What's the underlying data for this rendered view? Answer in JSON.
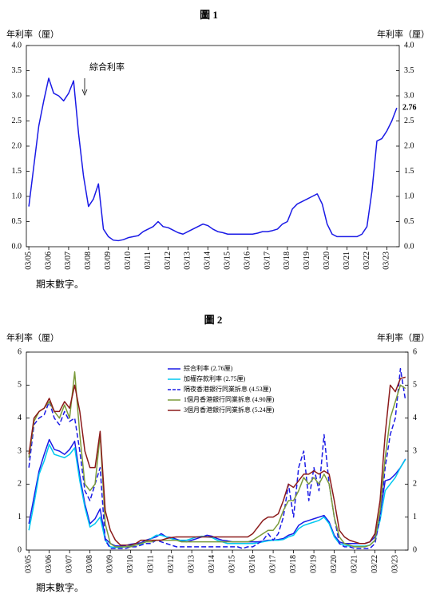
{
  "chart_data": [
    {
      "type": "line",
      "title": "圖 1",
      "y_label": "年利率（厘）",
      "y2_label": "年利率（厘）",
      "annotation": "綜合利率",
      "footnote": "期末數字。",
      "categories": [
        "03/05",
        null,
        null,
        null,
        "03/06",
        null,
        null,
        null,
        "03/07",
        null,
        null,
        null,
        "03/08",
        null,
        null,
        null,
        "03/09",
        null,
        null,
        null,
        "03/10",
        null,
        null,
        null,
        "03/11",
        null,
        null,
        null,
        "03/12",
        null,
        null,
        null,
        "03/13",
        null,
        null,
        null,
        "03/14",
        null,
        null,
        null,
        "03/15",
        null,
        null,
        null,
        "03/16",
        null,
        null,
        null,
        "03/17",
        null,
        null,
        null,
        "03/18",
        null,
        null,
        null,
        "03/19",
        null,
        null,
        null,
        "03/20",
        null,
        null,
        null,
        "03/21",
        null,
        null,
        null,
        "03/22",
        null,
        null,
        null,
        "03/23",
        null,
        null
      ],
      "values": [
        0.8,
        1.6,
        2.4,
        2.9,
        3.35,
        3.05,
        3.0,
        2.9,
        3.05,
        3.3,
        2.25,
        1.4,
        0.8,
        0.95,
        1.25,
        0.35,
        0.2,
        0.13,
        0.12,
        0.14,
        0.18,
        0.2,
        0.22,
        0.3,
        0.35,
        0.4,
        0.5,
        0.4,
        0.38,
        0.33,
        0.28,
        0.25,
        0.3,
        0.35,
        0.4,
        0.45,
        0.42,
        0.35,
        0.3,
        0.28,
        0.25,
        0.25,
        0.25,
        0.25,
        0.25,
        0.25,
        0.27,
        0.3,
        0.3,
        0.32,
        0.35,
        0.45,
        0.5,
        0.75,
        0.85,
        0.9,
        0.95,
        1.0,
        1.05,
        0.85,
        0.45,
        0.25,
        0.2,
        0.2,
        0.2,
        0.2,
        0.2,
        0.25,
        0.4,
        1.1,
        2.1,
        2.15,
        2.3,
        2.5,
        2.76
      ],
      "color": "#1a1ae6",
      "ylim": [
        0,
        4
      ],
      "yticks": [
        {
          "value": 0,
          "label": "0.0"
        },
        {
          "value": 0.5,
          "label": "0.5"
        },
        {
          "value": 1,
          "label": "1.0"
        },
        {
          "value": 1.5,
          "label": "1.5"
        },
        {
          "value": 2,
          "label": "2.0"
        },
        {
          "value": 2.5,
          "label": "2.5"
        },
        {
          "value": 3,
          "label": "3.0"
        },
        {
          "value": 3.5,
          "label": "3.5"
        },
        {
          "value": 4,
          "label": "4.0"
        }
      ],
      "y2lim": [
        0,
        4
      ],
      "y2ticks": [
        {
          "value": 0,
          "label": "0.0"
        },
        {
          "value": 0.5,
          "label": "0.5"
        },
        {
          "value": 1,
          "label": "1.0"
        },
        {
          "value": 1.5,
          "label": "1.5"
        },
        {
          "value": 2,
          "label": "2.0"
        },
        {
          "value": 2.5,
          "label": "2.5"
        },
        {
          "value": 3,
          "label": "3.0"
        },
        {
          "value": 3.5,
          "label": "3.5"
        },
        {
          "value": 4,
          "label": "4.0"
        }
      ],
      "grid": false
    },
    {
      "type": "line",
      "title": "圖 2",
      "y_label": "年利率（厘）",
      "y2_label": "年利率（厘）",
      "footnote": "期末數字。",
      "legend": "upper center",
      "categories": [
        "03/05",
        null,
        null,
        null,
        "03/06",
        null,
        null,
        null,
        "03/07",
        null,
        null,
        null,
        "03/08",
        null,
        null,
        null,
        "03/09",
        null,
        null,
        null,
        "03/10",
        null,
        null,
        null,
        "03/11",
        null,
        null,
        null,
        "03/12",
        null,
        null,
        null,
        "03/13",
        null,
        null,
        null,
        "03/14",
        null,
        null,
        null,
        "03/15",
        null,
        null,
        null,
        "03/16",
        null,
        null,
        null,
        "03/17",
        null,
        null,
        null,
        "03/18",
        null,
        null,
        null,
        "03/19",
        null,
        null,
        null,
        "03/20",
        null,
        null,
        null,
        "03/21",
        null,
        null,
        null,
        "03/22",
        null,
        null,
        null,
        "03/23",
        null,
        null
      ],
      "series": [
        {
          "name": "綜合利率 (2.76厘)",
          "color": "#1a1ae6",
          "dash": false,
          "values": [
            0.8,
            1.6,
            2.4,
            2.9,
            3.35,
            3.05,
            3.0,
            2.9,
            3.05,
            3.3,
            2.25,
            1.4,
            0.8,
            0.95,
            1.25,
            0.35,
            0.2,
            0.13,
            0.12,
            0.14,
            0.18,
            0.2,
            0.22,
            0.3,
            0.35,
            0.4,
            0.5,
            0.4,
            0.38,
            0.33,
            0.28,
            0.25,
            0.3,
            0.35,
            0.4,
            0.45,
            0.42,
            0.35,
            0.3,
            0.28,
            0.25,
            0.25,
            0.25,
            0.25,
            0.25,
            0.25,
            0.27,
            0.3,
            0.3,
            0.32,
            0.35,
            0.45,
            0.5,
            0.75,
            0.85,
            0.9,
            0.95,
            1.0,
            1.05,
            0.85,
            0.45,
            0.25,
            0.2,
            0.2,
            0.2,
            0.2,
            0.2,
            0.25,
            0.4,
            1.1,
            2.1,
            2.15,
            2.3,
            2.5,
            2.76
          ]
        },
        {
          "name": "加權存款利率 (2.75厘)",
          "color": "#00c8f0",
          "dash": false,
          "values": [
            0.6,
            1.4,
            2.3,
            2.7,
            3.2,
            2.9,
            2.85,
            2.8,
            2.9,
            3.1,
            2.1,
            1.3,
            0.7,
            0.8,
            1.0,
            0.3,
            0.1,
            0.08,
            0.08,
            0.1,
            0.12,
            0.15,
            0.18,
            0.25,
            0.35,
            0.45,
            0.45,
            0.4,
            0.35,
            0.3,
            0.3,
            0.3,
            0.35,
            0.4,
            0.42,
            0.4,
            0.38,
            0.3,
            0.25,
            0.2,
            0.2,
            0.2,
            0.2,
            0.2,
            0.2,
            0.22,
            0.25,
            0.28,
            0.3,
            0.3,
            0.32,
            0.4,
            0.45,
            0.65,
            0.75,
            0.8,
            0.85,
            0.9,
            1.0,
            0.8,
            0.4,
            0.2,
            0.15,
            0.12,
            0.12,
            0.12,
            0.12,
            0.15,
            0.3,
            0.9,
            1.8,
            2.0,
            2.2,
            2.5,
            2.75
          ]
        },
        {
          "name": "隔夜香港銀行同業拆息 (4.53厘)",
          "color": "#1a1ae6",
          "dash": true,
          "values": [
            2.5,
            3.8,
            4.0,
            4.1,
            4.5,
            4.0,
            3.8,
            4.2,
            3.9,
            4.0,
            3.0,
            1.8,
            1.5,
            2.0,
            2.5,
            0.3,
            0.05,
            0.05,
            0.05,
            0.05,
            0.1,
            0.1,
            0.15,
            0.2,
            0.2,
            0.3,
            0.25,
            0.2,
            0.15,
            0.1,
            0.1,
            0.1,
            0.1,
            0.1,
            0.1,
            0.1,
            0.1,
            0.1,
            0.1,
            0.1,
            0.1,
            0.1,
            0.05,
            0.1,
            0.1,
            0.2,
            0.3,
            0.5,
            0.3,
            0.5,
            1.0,
            2.0,
            1.0,
            2.5,
            3.0,
            1.5,
            2.5,
            1.8,
            3.5,
            2.0,
            1.0,
            0.2,
            0.1,
            0.1,
            0.05,
            0.05,
            0.05,
            0.05,
            0.2,
            1.0,
            2.5,
            3.5,
            4.0,
            5.5,
            4.53
          ]
        },
        {
          "name": "1個月香港銀行同業拆息 (4.90厘)",
          "color": "#7a9a3a",
          "dash": false,
          "values": [
            2.8,
            3.9,
            4.2,
            4.3,
            4.5,
            4.2,
            4.0,
            4.4,
            4.0,
            5.4,
            3.5,
            2.0,
            1.8,
            2.0,
            3.5,
            0.8,
            0.2,
            0.1,
            0.1,
            0.1,
            0.1,
            0.15,
            0.2,
            0.25,
            0.25,
            0.3,
            0.3,
            0.3,
            0.3,
            0.3,
            0.25,
            0.25,
            0.25,
            0.25,
            0.25,
            0.25,
            0.25,
            0.25,
            0.25,
            0.25,
            0.25,
            0.25,
            0.25,
            0.25,
            0.3,
            0.4,
            0.5,
            0.6,
            0.6,
            0.8,
            1.2,
            1.5,
            1.5,
            1.8,
            2.2,
            2.0,
            2.2,
            2.0,
            2.3,
            2.0,
            1.0,
            0.4,
            0.2,
            0.15,
            0.1,
            0.1,
            0.1,
            0.15,
            0.3,
            1.2,
            2.8,
            4.0,
            4.5,
            5.0,
            4.9
          ]
        },
        {
          "name": "3個月香港銀行同業拆息 (5.24厘)",
          "color": "#8b1a1a",
          "dash": false,
          "values": [
            2.9,
            4.0,
            4.2,
            4.3,
            4.6,
            4.2,
            4.2,
            4.5,
            4.3,
            5.0,
            4.2,
            3.0,
            2.5,
            2.5,
            3.6,
            1.2,
            0.6,
            0.3,
            0.15,
            0.15,
            0.15,
            0.2,
            0.3,
            0.3,
            0.3,
            0.3,
            0.3,
            0.35,
            0.38,
            0.4,
            0.4,
            0.4,
            0.4,
            0.4,
            0.4,
            0.4,
            0.4,
            0.4,
            0.4,
            0.4,
            0.4,
            0.4,
            0.4,
            0.4,
            0.5,
            0.7,
            0.9,
            1.0,
            1.0,
            1.1,
            1.5,
            2.0,
            1.9,
            2.1,
            2.3,
            2.3,
            2.4,
            2.3,
            2.4,
            2.3,
            1.5,
            0.6,
            0.4,
            0.3,
            0.25,
            0.2,
            0.2,
            0.25,
            0.5,
            1.5,
            3.5,
            5.0,
            4.8,
            5.2,
            5.24
          ]
        }
      ],
      "ylim": [
        0,
        6
      ],
      "yticks": [
        0,
        1,
        2,
        3,
        4,
        5,
        6
      ],
      "y2lim": [
        0,
        6
      ],
      "y2ticks": [
        0,
        1,
        2,
        3,
        4,
        5,
        6
      ],
      "grid": false
    }
  ]
}
